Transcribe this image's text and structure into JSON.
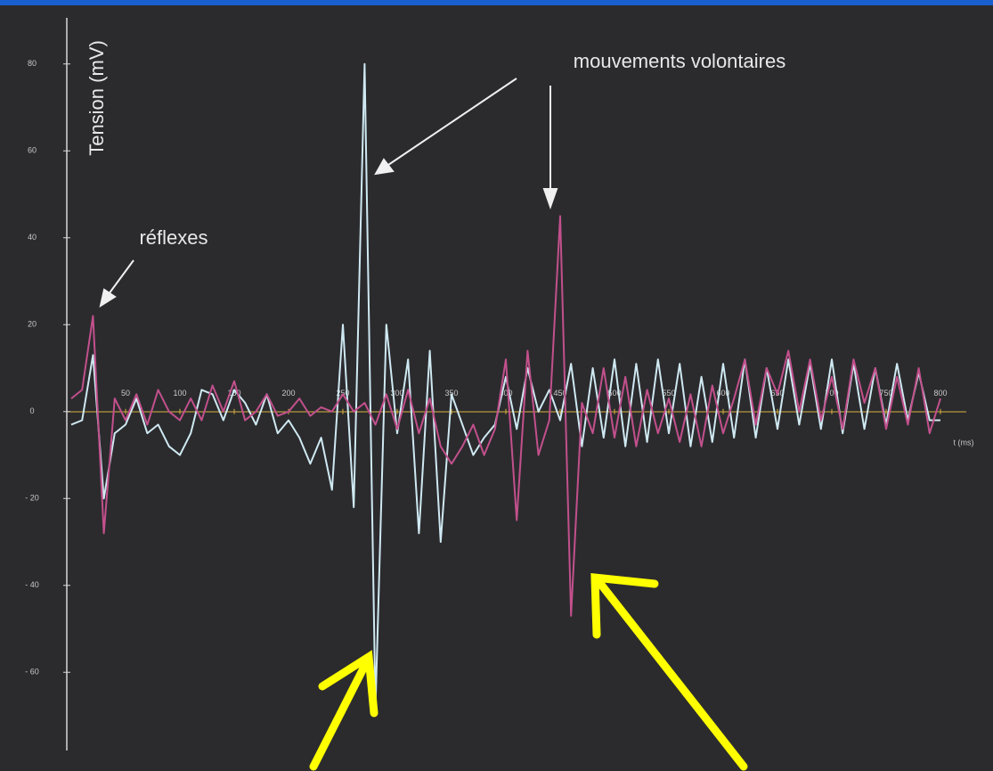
{
  "chart_data": {
    "type": "line",
    "y_label": "Tension (mV)",
    "x_label": "t (ms)",
    "annotations": [
      "réflexes",
      "mouvements volontaires"
    ],
    "xlim": [
      0,
      800
    ],
    "ylim": [
      -78,
      90
    ],
    "xticks": [
      50,
      100,
      150,
      200,
      250,
      300,
      350,
      400,
      450,
      500,
      550,
      600,
      650,
      700,
      750,
      800
    ],
    "yticks": [
      80,
      60,
      40,
      20,
      0,
      {
        "value": -20,
        "label": "- 20"
      },
      {
        "value": -40,
        "label": "- 40"
      },
      {
        "value": -60,
        "label": "- 60"
      }
    ],
    "x": [
      0,
      10,
      20,
      30,
      40,
      50,
      60,
      70,
      80,
      90,
      100,
      110,
      120,
      130,
      140,
      150,
      160,
      170,
      180,
      190,
      200,
      210,
      220,
      230,
      240,
      250,
      260,
      270,
      280,
      290,
      300,
      310,
      320,
      330,
      340,
      350,
      360,
      370,
      380,
      390,
      400,
      410,
      420,
      430,
      440,
      450,
      460,
      470,
      480,
      490,
      500,
      510,
      520,
      530,
      540,
      550,
      560,
      570,
      580,
      590,
      600,
      610,
      620,
      630,
      640,
      650,
      660,
      670,
      680,
      690,
      700,
      710,
      720,
      730,
      740,
      750,
      760,
      770,
      780,
      790,
      800
    ],
    "series": [
      {
        "color": "#cfe9f2",
        "values": [
          -3,
          -2,
          13,
          -20,
          -5,
          -3,
          3,
          -5,
          -3,
          -8,
          -10,
          -5,
          5,
          4,
          -2,
          5,
          2,
          -3,
          4,
          -5,
          -2,
          -6,
          -12,
          -6,
          -18,
          20,
          -22,
          80,
          -68,
          20,
          -5,
          12,
          -28,
          14,
          -30,
          4,
          -3,
          -10,
          -6,
          -3,
          8,
          -4,
          10,
          0,
          5,
          -2,
          11,
          -8,
          10,
          -6,
          12,
          -8,
          11,
          -7,
          12,
          -5,
          11,
          -8,
          8,
          -7,
          11,
          -6,
          12,
          -6,
          10,
          -4,
          12,
          -3,
          11,
          -4,
          12,
          -5,
          11,
          -4,
          10,
          -3,
          11,
          -2,
          9,
          -2,
          -2
        ]
      },
      {
        "color": "#c2508c",
        "values": [
          3,
          5,
          22,
          -28,
          3,
          -2,
          4,
          -3,
          5,
          0,
          -2,
          3,
          -2,
          6,
          0,
          7,
          -2,
          0,
          4,
          -1,
          0,
          3,
          -1,
          1,
          0,
          4,
          0,
          2,
          -3,
          4,
          -4,
          5,
          -5,
          3,
          -8,
          -12,
          -8,
          -3,
          -10,
          -4,
          12,
          -25,
          14,
          -10,
          -2,
          45,
          -47,
          2,
          -5,
          10,
          -6,
          8,
          -8,
          5,
          -5,
          3,
          -7,
          4,
          -8,
          6,
          -5,
          3,
          12,
          -3,
          10,
          4,
          14,
          0,
          12,
          -2,
          8,
          -4,
          12,
          2,
          10,
          -4,
          8,
          -3,
          10,
          -5,
          3
        ]
      }
    ]
  }
}
